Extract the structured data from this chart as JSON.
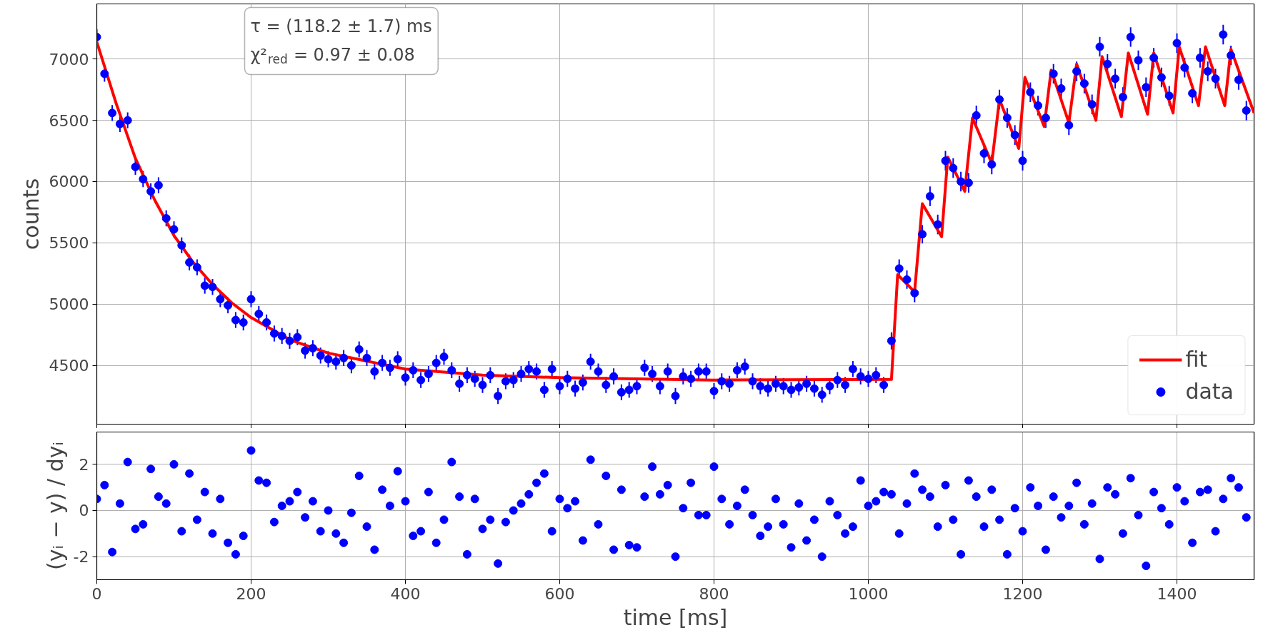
{
  "chart_data": [
    {
      "type": "scatter",
      "ylabel": "counts",
      "xlim": [
        0,
        1500
      ],
      "xticks": [
        0,
        200,
        400,
        600,
        800,
        1000,
        1200,
        1400
      ],
      "ylim": [
        4020,
        7450
      ],
      "yticks": [
        4500,
        5000,
        5500,
        6000,
        6500,
        7000
      ],
      "tick_labels": "y",
      "grid": true,
      "legend": "bottom right",
      "annotations": [
        "τ = (118.2 ± 1.7) ms",
        "χ²$_{red}$ = 0.97 ± 0.08"
      ],
      "x": [
        0,
        10,
        20,
        30,
        40,
        50,
        60,
        70,
        80,
        90,
        100,
        110,
        120,
        130,
        140,
        150,
        160,
        170,
        180,
        190,
        200,
        210,
        220,
        230,
        240,
        250,
        260,
        270,
        280,
        290,
        300,
        310,
        320,
        330,
        340,
        350,
        360,
        370,
        380,
        390,
        400,
        410,
        420,
        430,
        440,
        450,
        460,
        470,
        480,
        490,
        500,
        510,
        520,
        530,
        540,
        550,
        560,
        570,
        580,
        590,
        600,
        610,
        620,
        630,
        640,
        650,
        660,
        670,
        680,
        690,
        700,
        710,
        720,
        730,
        740,
        750,
        760,
        770,
        780,
        790,
        800,
        810,
        820,
        830,
        840,
        850,
        860,
        870,
        880,
        890,
        900,
        910,
        920,
        930,
        940,
        950,
        960,
        970,
        980,
        990,
        1000,
        1010,
        1020,
        1030,
        1040,
        1050,
        1060,
        1070,
        1080,
        1090,
        1100,
        1110,
        1120,
        1130,
        1140,
        1150,
        1160,
        1170,
        1180,
        1190,
        1200,
        1210,
        1220,
        1230,
        1240,
        1250,
        1260,
        1270,
        1280,
        1290,
        1300,
        1310,
        1320,
        1330,
        1340,
        1350,
        1360,
        1370,
        1380,
        1390,
        1400,
        1410,
        1420,
        1430,
        1440,
        1450,
        1460,
        1470,
        1480,
        1490
      ],
      "series": [
        {
          "name": "fit",
          "type": "line",
          "color": "#ff0000",
          "x": [
            0,
            25,
            50,
            75,
            100,
            125,
            150,
            175,
            200,
            250,
            300,
            400,
            500,
            600,
            800,
            1030,
            1038,
            1060,
            1070,
            1095,
            1103,
            1125,
            1135,
            1160,
            1170,
            1195,
            1203,
            1228,
            1237,
            1260,
            1270,
            1295,
            1303,
            1328,
            1337,
            1362,
            1370,
            1395,
            1403,
            1428,
            1437,
            1462,
            1470,
            1500
          ],
          "values": [
            7140,
            6640,
            6190,
            5850,
            5560,
            5340,
            5160,
            5010,
            4890,
            4710,
            4600,
            4470,
            4420,
            4400,
            4380,
            4385,
            5240,
            5100,
            5820,
            5550,
            6200,
            5920,
            6520,
            6150,
            6670,
            6270,
            6850,
            6450,
            6910,
            6480,
            6960,
            6500,
            7020,
            6530,
            7050,
            6550,
            7050,
            6560,
            7100,
            6620,
            7100,
            6620,
            7080,
            6560
          ]
        },
        {
          "name": "data",
          "type": "scatter",
          "marker": "circle",
          "color": "#0000ff",
          "values": [
            7180,
            6880,
            6560,
            6470,
            6500,
            6120,
            6020,
            5920,
            5970,
            5700,
            5610,
            5480,
            5340,
            5300,
            5150,
            5140,
            5040,
            4990,
            4870,
            4850,
            5040,
            4920,
            4850,
            4760,
            4740,
            4700,
            4730,
            4620,
            4640,
            4580,
            4550,
            4530,
            4560,
            4500,
            4630,
            4560,
            4450,
            4520,
            4480,
            4550,
            4400,
            4460,
            4380,
            4430,
            4520,
            4570,
            4460,
            4350,
            4420,
            4390,
            4340,
            4420,
            4250,
            4370,
            4380,
            4430,
            4470,
            4450,
            4300,
            4470,
            4330,
            4390,
            4310,
            4360,
            4530,
            4450,
            4340,
            4410,
            4280,
            4300,
            4330,
            4480,
            4430,
            4330,
            4450,
            4250,
            4410,
            4390,
            4450,
            4450,
            4290,
            4370,
            4350,
            4460,
            4490,
            4370,
            4330,
            4310,
            4350,
            4330,
            4300,
            4320,
            4350,
            4310,
            4260,
            4330,
            4380,
            4340,
            4470,
            4410,
            4390,
            4420,
            4340,
            4700,
            5290,
            5200,
            5090,
            5570,
            5880,
            5650,
            6170,
            6110,
            6000,
            5990,
            6540,
            6230,
            6140,
            6670,
            6520,
            6380,
            6170,
            6730,
            6620,
            6520,
            6880,
            6760,
            6460,
            6900,
            6800,
            6630,
            7100,
            6960,
            6840,
            6690,
            7180,
            6990,
            6770,
            7010,
            6850,
            6700,
            7130,
            6930,
            6720,
            7010,
            6900,
            6840,
            7200,
            7030,
            6830,
            6580
          ],
          "errors": [
            65,
            65,
            65,
            65,
            65,
            65,
            65,
            65,
            65,
            65,
            65,
            65,
            65,
            65,
            65,
            65,
            65,
            65,
            65,
            65,
            65,
            65,
            65,
            65,
            65,
            65,
            65,
            65,
            65,
            65,
            65,
            65,
            65,
            65,
            65,
            65,
            65,
            65,
            65,
            65,
            65,
            65,
            65,
            65,
            65,
            65,
            65,
            65,
            65,
            65,
            65,
            65,
            65,
            65,
            65,
            65,
            65,
            65,
            65,
            65,
            65,
            65,
            65,
            65,
            65,
            65,
            65,
            65,
            65,
            65,
            65,
            65,
            65,
            65,
            65,
            65,
            65,
            65,
            65,
            65,
            65,
            65,
            65,
            65,
            65,
            65,
            65,
            65,
            65,
            65,
            65,
            65,
            65,
            65,
            65,
            65,
            65,
            65,
            65,
            65,
            65,
            65,
            65,
            70,
            75,
            75,
            75,
            75,
            80,
            80,
            80,
            80,
            80,
            80,
            80,
            80,
            80,
            80,
            80,
            80,
            80,
            80,
            80,
            80,
            80,
            80,
            80,
            80,
            80,
            80,
            80,
            80,
            80,
            80,
            80,
            80,
            80,
            80,
            80,
            80,
            80,
            80,
            80,
            80,
            80,
            80,
            80,
            80,
            80,
            80
          ]
        }
      ]
    },
    {
      "type": "scatter",
      "xlabel": "time [ms]",
      "ylabel": "(yᵢ − y) / dyᵢ",
      "xlim": [
        0,
        1500
      ],
      "xticks": [
        0,
        200,
        400,
        600,
        800,
        1000,
        1200,
        1400
      ],
      "ylim": [
        -3,
        3.4
      ],
      "yticks": [
        -2,
        0,
        2
      ],
      "grid": true,
      "marker": "circle",
      "x": [
        0,
        10,
        20,
        30,
        40,
        50,
        60,
        70,
        80,
        90,
        100,
        110,
        120,
        130,
        140,
        150,
        160,
        170,
        180,
        190,
        200,
        210,
        220,
        230,
        240,
        250,
        260,
        270,
        280,
        290,
        300,
        310,
        320,
        330,
        340,
        350,
        360,
        370,
        380,
        390,
        400,
        410,
        420,
        430,
        440,
        450,
        460,
        470,
        480,
        490,
        500,
        510,
        520,
        530,
        540,
        550,
        560,
        570,
        580,
        590,
        600,
        610,
        620,
        630,
        640,
        650,
        660,
        670,
        680,
        690,
        700,
        710,
        720,
        730,
        740,
        750,
        760,
        770,
        780,
        790,
        800,
        810,
        820,
        830,
        840,
        850,
        860,
        870,
        880,
        890,
        900,
        910,
        920,
        930,
        940,
        950,
        960,
        970,
        980,
        990,
        1000,
        1010,
        1020,
        1030,
        1040,
        1050,
        1060,
        1070,
        1080,
        1090,
        1100,
        1110,
        1120,
        1130,
        1140,
        1150,
        1160,
        1170,
        1180,
        1190,
        1200,
        1210,
        1220,
        1230,
        1240,
        1250,
        1260,
        1270,
        1280,
        1290,
        1300,
        1310,
        1320,
        1330,
        1340,
        1350,
        1360,
        1370,
        1380,
        1390,
        1400,
        1410,
        1420,
        1430,
        1440,
        1450,
        1460,
        1470,
        1480,
        1490
      ],
      "series": [
        {
          "color": "#0000ff",
          "values": [
            0.5,
            1.1,
            -1.8,
            0.3,
            2.1,
            -0.8,
            -0.6,
            1.8,
            0.6,
            0.3,
            2.0,
            -0.9,
            1.6,
            -0.4,
            0.8,
            -1.0,
            0.5,
            -1.4,
            -1.9,
            -1.1,
            2.6,
            1.3,
            1.2,
            -0.5,
            0.2,
            0.4,
            0.8,
            -0.3,
            0.4,
            -0.9,
            0.0,
            -1.0,
            -1.4,
            -0.1,
            1.5,
            -0.7,
            -1.7,
            0.9,
            0.2,
            1.7,
            0.4,
            -1.1,
            -0.9,
            0.8,
            -1.4,
            -0.4,
            2.1,
            0.6,
            -1.9,
            0.5,
            -0.8,
            -0.4,
            -2.3,
            -0.5,
            0.0,
            0.3,
            0.7,
            1.2,
            1.6,
            -0.9,
            0.5,
            0.1,
            0.4,
            -1.3,
            2.2,
            -0.6,
            1.5,
            -1.7,
            0.9,
            -1.5,
            -1.6,
            0.6,
            1.9,
            0.7,
            1.1,
            -2.0,
            0.1,
            1.2,
            -0.2,
            -0.2,
            1.9,
            0.5,
            -0.6,
            0.2,
            0.9,
            -0.2,
            -1.1,
            -0.7,
            0.5,
            -0.6,
            -1.6,
            0.3,
            -1.3,
            -0.4,
            -2.0,
            0.4,
            -0.2,
            -1.0,
            -0.7,
            1.3,
            0.2,
            0.4,
            0.8,
            0.7,
            -1.0,
            0.3,
            1.6,
            0.9,
            0.6,
            -0.7,
            1.1,
            -0.4,
            -1.9,
            1.3,
            0.6,
            -0.7,
            0.9,
            -0.4,
            -1.9,
            0.1,
            -0.9,
            1.0,
            0.2,
            -1.7,
            0.6,
            -0.3,
            0.2,
            1.2,
            -0.6,
            0.3,
            -2.1,
            1.0,
            0.7,
            -1.0,
            1.4,
            -0.2,
            -2.4,
            0.8,
            0.1,
            -0.6,
            1.0,
            0.4,
            -1.4,
            0.8,
            0.9,
            -0.9,
            0.5,
            1.4,
            1.0,
            -0.3
          ]
        }
      ]
    }
  ]
}
